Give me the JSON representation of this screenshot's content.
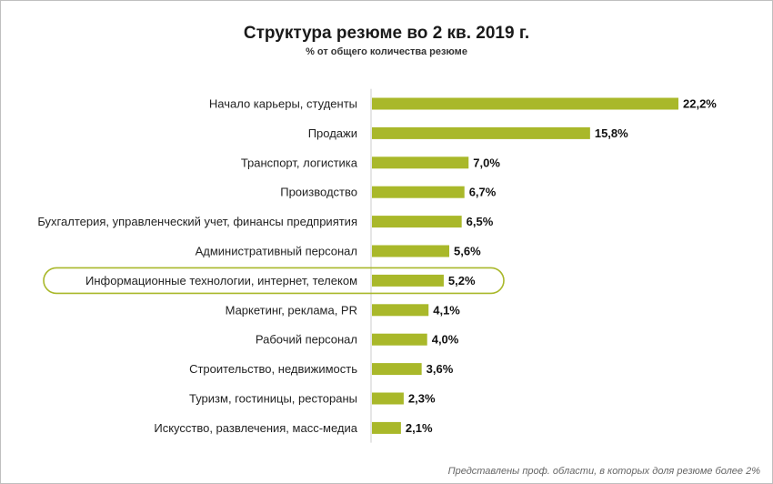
{
  "title": "Структура резюме во 2 кв. 2019 г.",
  "subtitle": "% от общего количества резюме",
  "footnote": "Представлены проф. области, в которых доля резюме более 2%",
  "colors": {
    "bar": "#a9b82a",
    "highlight_border": "#a9b82a",
    "axis": "#cccccc"
  },
  "chart_data": {
    "type": "bar",
    "orientation": "horizontal",
    "title": "Структура резюме во 2 кв. 2019 г.",
    "subtitle": "% от общего количества резюме",
    "categories": [
      "Начало карьеры, студенты",
      "Продажи",
      "Транспорт, логистика",
      "Производство",
      "Бухгалтерия, управленческий учет, финансы предприятия",
      "Административный персонал",
      "Информационные технологии, интернет, телеком",
      "Маркетинг, реклама, PR",
      "Рабочий персонал",
      "Строительство, недвижимость",
      "Туризм, гостиницы, рестораны",
      "Искусство, развлечения, масс-медиа"
    ],
    "values": [
      22.2,
      15.8,
      7.0,
      6.7,
      6.5,
      5.6,
      5.2,
      4.1,
      4.0,
      3.6,
      2.3,
      2.1
    ],
    "value_labels": [
      "22,2%",
      "15,8%",
      "7,0%",
      "6,7%",
      "6,5%",
      "5,6%",
      "5,2%",
      "4,1%",
      "4,0%",
      "3,6%",
      "2,3%",
      "2,1%"
    ],
    "highlighted_category": "Информационные технологии, интернет, телеком",
    "grid": false,
    "legend": "none"
  }
}
